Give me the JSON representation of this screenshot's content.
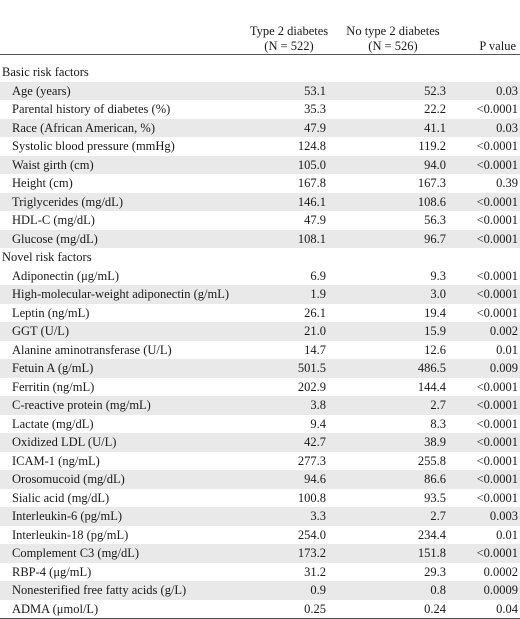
{
  "headers": {
    "col_a_line1": "Type 2 diabetes",
    "col_a_line2": "(N = 522)",
    "col_b_line1": "No type 2 diabetes",
    "col_b_line2": "(N = 526)",
    "col_p": "P value"
  },
  "sections": [
    {
      "title": "Basic risk factors",
      "rows": [
        {
          "label": "Age (years)",
          "a": "53.1",
          "b": "52.3",
          "p": "0.03"
        },
        {
          "label": "Parental history of diabetes (%)",
          "a": "35.3",
          "b": "22.2",
          "p": "<0.0001"
        },
        {
          "label": "Race (African American, %)",
          "a": "47.9",
          "b": "41.1",
          "p": "0.03"
        },
        {
          "label": "Systolic blood pressure (mmHg)",
          "a": "124.8",
          "b": "119.2",
          "p": "<0.0001"
        },
        {
          "label": "Waist girth (cm)",
          "a": "105.0",
          "b": "94.0",
          "p": "<0.0001"
        },
        {
          "label": "Height (cm)",
          "a": "167.8",
          "b": "167.3",
          "p": "0.39"
        },
        {
          "label": "Triglycerides (mg/dL)",
          "a": "146.1",
          "b": "108.6",
          "p": "<0.0001"
        },
        {
          "label": "HDL-C (mg/dL)",
          "a": "47.9",
          "b": "56.3",
          "p": "<0.0001"
        },
        {
          "label": "Glucose (mg/dL)",
          "a": "108.1",
          "b": "96.7",
          "p": "<0.0001"
        }
      ]
    },
    {
      "title": "Novel risk factors",
      "rows": [
        {
          "label": "Adiponectin (μg/mL)",
          "a": "6.9",
          "b": "9.3",
          "p": "<0.0001"
        },
        {
          "label": "High-molecular-weight adiponectin (g/mL)",
          "a": "1.9",
          "b": "3.0",
          "p": "<0.0001"
        },
        {
          "label": "Leptin (ng/mL)",
          "a": "26.1",
          "b": "19.4",
          "p": "<0.0001"
        },
        {
          "label": "GGT (U/L)",
          "a": "21.0",
          "b": "15.9",
          "p": "0.002"
        },
        {
          "label": "Alanine aminotransferase (U/L)",
          "a": "14.7",
          "b": "12.6",
          "p": "0.01"
        },
        {
          "label": "Fetuin A (g/mL)",
          "a": "501.5",
          "b": "486.5",
          "p": "0.009"
        },
        {
          "label": "Ferritin (ng/mL)",
          "a": "202.9",
          "b": "144.4",
          "p": "<0.0001"
        },
        {
          "label": "C-reactive protein (mg/mL)",
          "a": "3.8",
          "b": "2.7",
          "p": "<0.0001"
        },
        {
          "label": "Lactate (mg/dL)",
          "a": "9.4",
          "b": "8.3",
          "p": "<0.0001"
        },
        {
          "label": "Oxidized LDL (U/L)",
          "a": "42.7",
          "b": "38.9",
          "p": "<0.0001"
        },
        {
          "label": "ICAM-1 (ng/mL)",
          "a": "277.3",
          "b": "255.8",
          "p": "<0.0001"
        },
        {
          "label": "Orosomucoid (mg/dL)",
          "a": "94.6",
          "b": "86.6",
          "p": "<0.0001"
        },
        {
          "label": "Sialic acid (mg/dL)",
          "a": "100.8",
          "b": "93.5",
          "p": "<0.0001"
        },
        {
          "label": "Interleukin-6 (pg/mL)",
          "a": "3.3",
          "b": "2.7",
          "p": "0.003"
        },
        {
          "label": "Interleukin-18 (pg/mL)",
          "a": "254.0",
          "b": "234.4",
          "p": "0.01"
        },
        {
          "label": "Complement C3 (mg/dL)",
          "a": "173.2",
          "b": "151.8",
          "p": "<0.0001"
        },
        {
          "label": "RBP-4 (μg/mL)",
          "a": "31.2",
          "b": "29.3",
          "p": "0.0002"
        },
        {
          "label": "Nonesterified free fatty acids (g/L)",
          "a": "0.9",
          "b": "0.8",
          "p": "0.0009"
        },
        {
          "label": "ADMA (μmol/L)",
          "a": "0.25",
          "b": "0.24",
          "p": "0.04"
        }
      ]
    }
  ],
  "colors": {
    "shade": "#e9e9e9",
    "rule": "#555555"
  }
}
